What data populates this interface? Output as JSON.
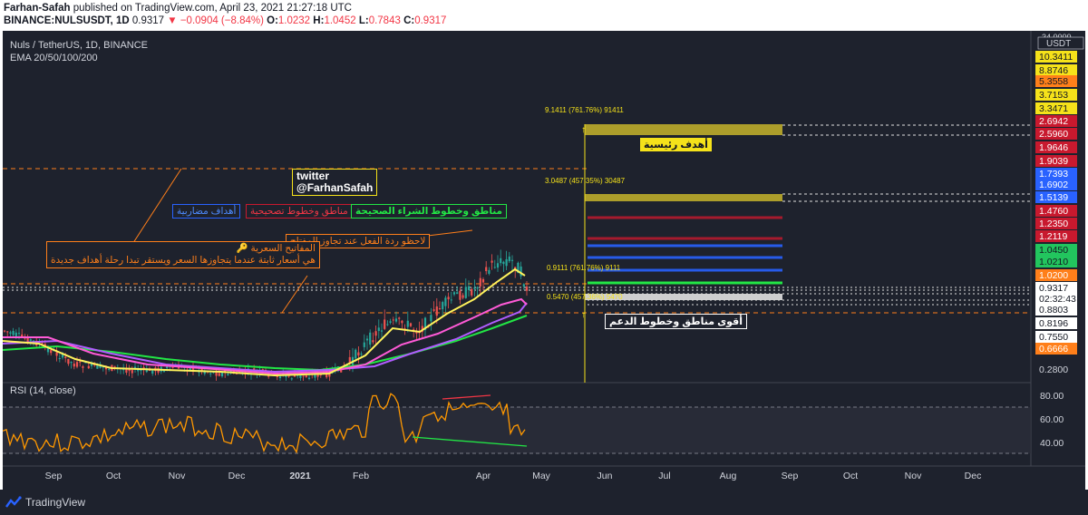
{
  "header": {
    "author": "Farhan-Safah",
    "published_text": "published on TradingView.com, April 23, 2021 21:27:18 UTC",
    "symbol_line": "BINANCE:NULSUSDT, 1D",
    "last": "0.9317",
    "change": "−0.0904 (−8.84%)",
    "o_label": "O:",
    "o": "1.0232",
    "h_label": "H:",
    "h": "1.0452",
    "l_label": "L:",
    "l": "0.7843",
    "c_label": "C:",
    "c": "0.9317"
  },
  "legend": {
    "title": "Nuls / TetherUS, 1D, BINANCE",
    "ema": "EMA 20/50/100/200",
    "rsi": "RSI (14, close)"
  },
  "price_axis": {
    "currency": "USDT",
    "top_partial": "34.0000",
    "labels": [
      {
        "text": "10.3411",
        "bg": "#f5e21a",
        "fg": "#131722"
      },
      {
        "text": "8.8746",
        "bg": "#f5e21a",
        "fg": "#131722"
      },
      {
        "text": "5.3558",
        "bg": "#ff7f1a",
        "fg": "#131722"
      },
      {
        "text": "3.7153",
        "bg": "#f5e21a",
        "fg": "#131722"
      },
      {
        "text": "3.3471",
        "bg": "#f5e21a",
        "fg": "#131722"
      },
      {
        "text": "2.6942",
        "bg": "#c8192e",
        "fg": "#ffffff"
      },
      {
        "text": "2.5960",
        "bg": "#c8192e",
        "fg": "#ffffff"
      },
      {
        "text": "1.9646",
        "bg": "#c8192e",
        "fg": "#ffffff"
      },
      {
        "text": "1.9039",
        "bg": "#c8192e",
        "fg": "#ffffff"
      },
      {
        "text": "1.7393",
        "bg": "#2962ff",
        "fg": "#ffffff"
      },
      {
        "text": "1.6902",
        "bg": "#2962ff",
        "fg": "#ffffff"
      },
      {
        "text": "1.5139",
        "bg": "#2962ff",
        "fg": "#ffffff"
      },
      {
        "text": "1.4760",
        "bg": "#c8192e",
        "fg": "#ffffff"
      },
      {
        "text": "1.2350",
        "bg": "#c8192e",
        "fg": "#ffffff"
      },
      {
        "text": "1.2119",
        "bg": "#c8192e",
        "fg": "#ffffff"
      },
      {
        "text": "1.0450",
        "bg": "#22c55e",
        "fg": "#131722"
      },
      {
        "text": "1.0210",
        "bg": "#22c55e",
        "fg": "#131722"
      },
      {
        "text": "1.0200",
        "bg": "#ff7f1a",
        "fg": "#ffffff"
      },
      {
        "text": "0.9317",
        "bg": "#ffffff",
        "fg": "#131722"
      },
      {
        "text": "02:32:43",
        "bg": "#ffffff",
        "fg": "#131722"
      },
      {
        "text": "0.8803",
        "bg": "#ffffff",
        "fg": "#131722"
      },
      {
        "text": "0.8196",
        "bg": "#ffffff",
        "fg": "#131722"
      },
      {
        "text": "0.7550",
        "bg": "#ffffff",
        "fg": "#131722"
      },
      {
        "text": "0.6666",
        "bg": "#ff7f1a",
        "fg": "#ffffff"
      },
      {
        "text": "0.2800",
        "bg": "none",
        "fg": "#d1d4dc"
      }
    ]
  },
  "rsi_axis": [
    "80.00",
    "60.00",
    "40.00"
  ],
  "time_axis": [
    "Sep",
    "Oct",
    "Nov",
    "Dec",
    "2021",
    "Feb",
    "Apr",
    "May",
    "Jun",
    "Jul",
    "Aug",
    "Sep",
    "Oct",
    "Nov",
    "Dec"
  ],
  "fib": {
    "top_label": "9.1411 (761.76%) 91411",
    "mid_label": "3.0487 (457.35%) 30487",
    "low_label": "0.9111 (761.76%) 9111",
    "bot_label": "0.5470 (457.36%) 5470"
  },
  "annotations": {
    "twitter_line1": "twitter",
    "twitter_line2": "@FarhanSafah",
    "targets": "أهداف مضاربية",
    "correction": "مناطق وخطوط تصحيحية",
    "buy": "مناطق وخطوط الشراء الصحيحة",
    "reaction": "لاحظو ردة الفعل عند تجاوز المفتاح",
    "keys_title": "المفاتيح السعرية",
    "keys_body": "هي أسعار ثابتة عندما يتجاوزها السعر ويستقر تبدا رحلة أهداف جديدة",
    "main_targets": "أهدف رئيسية",
    "support": "أقوى مناطق وخطوط الدعم"
  },
  "footer": {
    "brand": "TradingView"
  },
  "colors": {
    "bg": "#1e222d",
    "ema20": "#fff35c",
    "ema50": "#ff5ad7",
    "ema100": "#b15cff",
    "ema200": "#22e645",
    "rsi": "#ff9800",
    "orange": "#ff7f1a",
    "blue": "#2962ff",
    "red": "#c8192e",
    "green": "#22c55e",
    "gold": "#c7b42b"
  }
}
